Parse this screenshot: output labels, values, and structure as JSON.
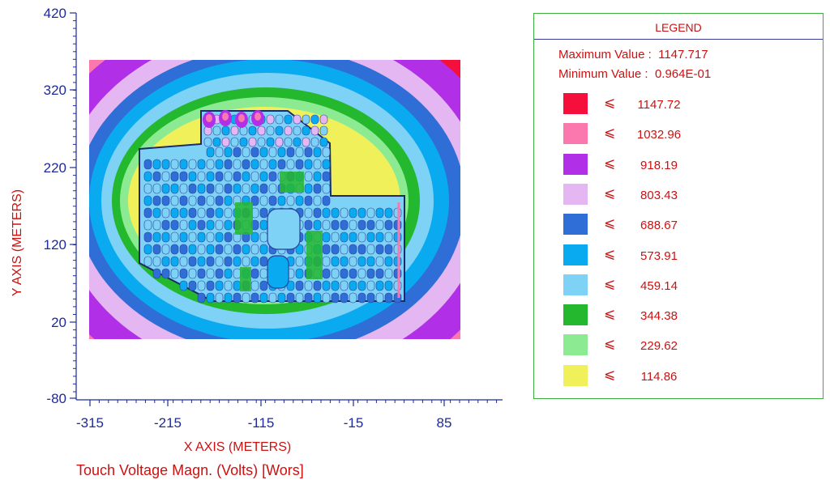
{
  "chart_data": {
    "type": "heatmap",
    "title": "Touch Voltage Magn. (Volts) [Wors]",
    "xlabel": "X AXIS  (METERS)",
    "ylabel": "Y AXIS  (METERS)",
    "x_ticks": [
      "-315",
      "-215",
      "-115",
      "-15",
      "85"
    ],
    "y_ticks": [
      "420",
      "320",
      "220",
      "120",
      "20",
      "-80"
    ],
    "xlim": [
      -315,
      135
    ],
    "ylim": [
      -80,
      420
    ],
    "grid": false,
    "legend_placement": "right"
  },
  "legend": {
    "header": "LEGEND",
    "maximum_label": "Maximum Value :",
    "maximum_value": "1147.717",
    "minimum_label": "Minimum Value :",
    "minimum_value": "0.964E-01",
    "le_symbol": "⩽",
    "levels": [
      {
        "value": "1147.72",
        "color": "#f5103c"
      },
      {
        "value": "1032.96",
        "color": "#fa78ae"
      },
      {
        "value": "918.19",
        "color": "#b12fe6"
      },
      {
        "value": "803.43",
        "color": "#e4b6f2"
      },
      {
        "value": "688.67",
        "color": "#2e6ed6"
      },
      {
        "value": "573.91",
        "color": "#0aaaf0"
      },
      {
        "value": "459.14",
        "color": "#7ed2f6"
      },
      {
        "value": "344.38",
        "color": "#24b82e"
      },
      {
        "value": "229.62",
        "color": "#8ceb92"
      },
      {
        "value": "114.86",
        "color": "#f0f05a"
      }
    ]
  }
}
